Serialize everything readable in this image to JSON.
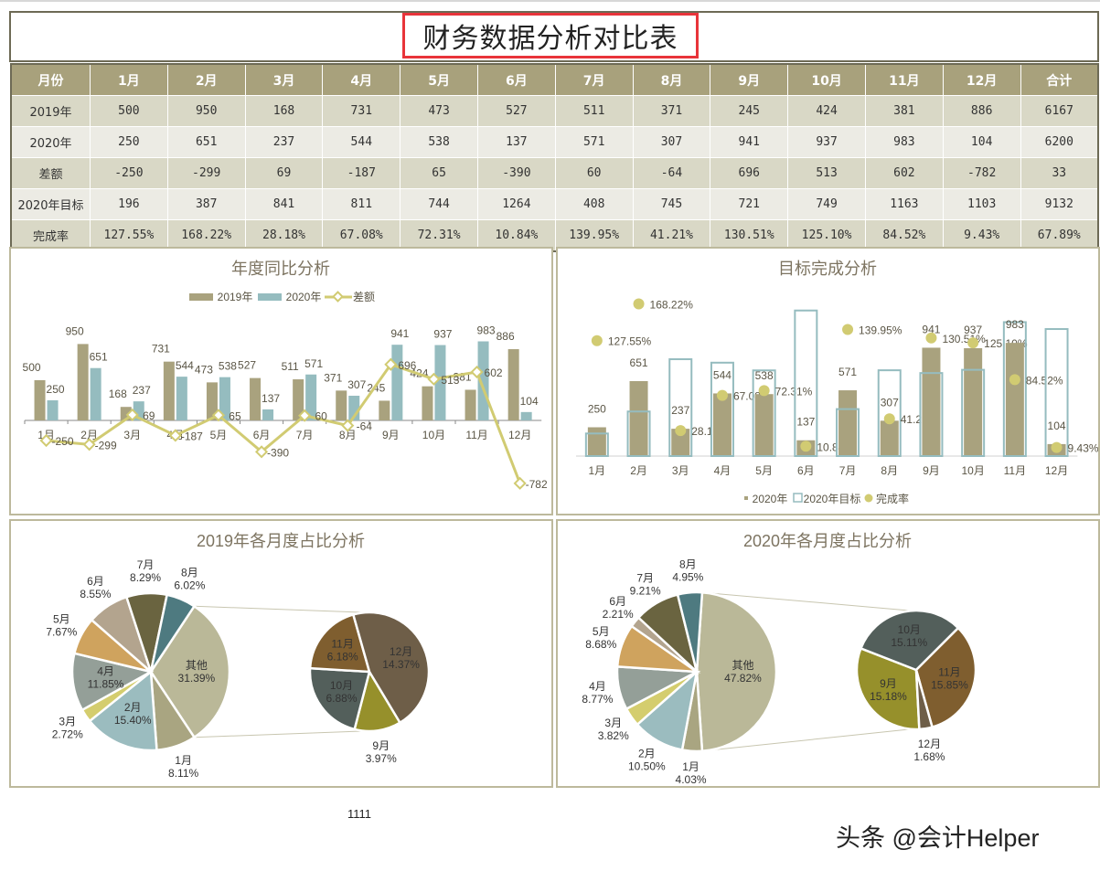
{
  "title": "财务数据分析对比表",
  "table": {
    "headers": [
      "月份",
      "1月",
      "2月",
      "3月",
      "4月",
      "5月",
      "6月",
      "7月",
      "8月",
      "9月",
      "10月",
      "11月",
      "12月",
      "合计"
    ],
    "rows": [
      [
        "2019年",
        "500",
        "950",
        "168",
        "731",
        "473",
        "527",
        "511",
        "371",
        "245",
        "424",
        "381",
        "886",
        "6167"
      ],
      [
        "2020年",
        "250",
        "651",
        "237",
        "544",
        "538",
        "137",
        "571",
        "307",
        "941",
        "937",
        "983",
        "104",
        "6200"
      ],
      [
        "差额",
        "-250",
        "-299",
        "69",
        "-187",
        "65",
        "-390",
        "60",
        "-64",
        "696",
        "513",
        "602",
        "-782",
        "33"
      ],
      [
        "2020年目标",
        "196",
        "387",
        "841",
        "811",
        "744",
        "1264",
        "408",
        "745",
        "721",
        "749",
        "1163",
        "1103",
        "9132"
      ],
      [
        "完成率",
        "127.55%",
        "168.22%",
        "28.18%",
        "67.08%",
        "72.31%",
        "10.84%",
        "139.95%",
        "41.21%",
        "130.51%",
        "125.10%",
        "84.52%",
        "9.43%",
        "67.89%"
      ]
    ]
  },
  "chart_data": [
    {
      "type": "bar",
      "title": "年度同比分析",
      "categories": [
        "1月",
        "2月",
        "3月",
        "4月",
        "5月",
        "6月",
        "7月",
        "8月",
        "9月",
        "10月",
        "11月",
        "12月"
      ],
      "series": [
        {
          "name": "2019年",
          "kind": "bar",
          "color": "#a9a27e",
          "values": [
            500,
            950,
            168,
            731,
            473,
            527,
            511,
            371,
            245,
            424,
            381,
            886
          ]
        },
        {
          "name": "2020年",
          "kind": "bar",
          "color": "#95bcbf",
          "values": [
            250,
            651,
            237,
            544,
            538,
            137,
            571,
            307,
            941,
            937,
            983,
            104
          ]
        },
        {
          "name": "差额",
          "kind": "line",
          "color": "#d1cb72",
          "values": [
            -250,
            -299,
            69,
            -187,
            65,
            -390,
            60,
            -64,
            696,
            513,
            602,
            -782
          ]
        }
      ],
      "legend": "top",
      "grid": false
    },
    {
      "type": "bar",
      "title": "目标完成分析",
      "categories": [
        "1月",
        "2月",
        "3月",
        "4月",
        "5月",
        "6月",
        "7月",
        "8月",
        "9月",
        "10月",
        "11月",
        "12月"
      ],
      "series": [
        {
          "name": "2020年",
          "kind": "bar",
          "color": "#a9a27e",
          "values": [
            250,
            651,
            237,
            544,
            538,
            137,
            571,
            307,
            941,
            937,
            983,
            104
          ]
        },
        {
          "name": "2020年目标",
          "kind": "bar-outline",
          "color": "#95bcbf",
          "values": [
            196,
            387,
            841,
            811,
            744,
            1264,
            408,
            745,
            721,
            749,
            1163,
            1103
          ]
        },
        {
          "name": "完成率",
          "kind": "scatter",
          "color": "#d1cb72",
          "values": [
            127.55,
            168.22,
            28.18,
            67.08,
            72.31,
            10.84,
            139.95,
            41.21,
            130.51,
            125.1,
            84.52,
            9.43
          ],
          "labels": [
            "127.55%",
            "168.22%",
            "28.18%",
            "67.08%",
            "72.31%",
            "10.84%",
            "139.95%",
            "41.21%",
            "130.51%",
            "125.10%",
            "84.52%",
            "9.43%"
          ]
        }
      ],
      "legend": "bottom",
      "grid": false
    },
    {
      "type": "pie",
      "title": "2019年各月度占比分析",
      "primary": [
        {
          "label": "其他",
          "value": 31.39,
          "pct": "31.39%",
          "color": "#bab898"
        },
        {
          "label": "1月",
          "value": 8.11,
          "pct": "8.11%",
          "color": "#a9a581"
        },
        {
          "label": "2月",
          "value": 15.4,
          "pct": "15.40%",
          "color": "#9bbcbf"
        },
        {
          "label": "3月",
          "value": 2.72,
          "pct": "2.72%",
          "color": "#d4cd6e"
        },
        {
          "label": "4月",
          "value": 11.85,
          "pct": "11.85%",
          "color": "#949f98"
        },
        {
          "label": "5月",
          "value": 7.67,
          "pct": "7.67%",
          "color": "#cfa35e"
        },
        {
          "label": "6月",
          "value": 8.55,
          "pct": "8.55%",
          "color": "#b3a48e"
        },
        {
          "label": "7月",
          "value": 8.29,
          "pct": "8.29%",
          "color": "#6a6440"
        },
        {
          "label": "8月",
          "value": 6.02,
          "pct": "6.02%",
          "color": "#4e7a80"
        }
      ],
      "secondary": [
        {
          "label": "9月",
          "value": 3.97,
          "pct": "3.97%",
          "color": "#96902b"
        },
        {
          "label": "10月",
          "value": 6.88,
          "pct": "6.88%",
          "color": "#535f5b"
        },
        {
          "label": "11月",
          "value": 6.18,
          "pct": "6.18%",
          "color": "#7f5e2f"
        },
        {
          "label": "12月",
          "value": 14.37,
          "pct": "14.37%",
          "color": "#6e5e48"
        }
      ]
    },
    {
      "type": "pie",
      "title": "2020年各月度占比分析",
      "primary": [
        {
          "label": "其他",
          "value": 47.82,
          "pct": "47.82%",
          "color": "#bab898"
        },
        {
          "label": "1月",
          "value": 4.03,
          "pct": "4.03%",
          "color": "#a9a581"
        },
        {
          "label": "2月",
          "value": 10.5,
          "pct": "10.50%",
          "color": "#9bbcbf"
        },
        {
          "label": "3月",
          "value": 3.82,
          "pct": "3.82%",
          "color": "#d4cd6e"
        },
        {
          "label": "4月",
          "value": 8.77,
          "pct": "8.77%",
          "color": "#949f98"
        },
        {
          "label": "5月",
          "value": 8.68,
          "pct": "8.68%",
          "color": "#cfa35e"
        },
        {
          "label": "6月",
          "value": 2.21,
          "pct": "2.21%",
          "color": "#b3a48e"
        },
        {
          "label": "7月",
          "value": 9.21,
          "pct": "9.21%",
          "color": "#6a6440"
        },
        {
          "label": "8月",
          "value": 4.95,
          "pct": "4.95%",
          "color": "#4e7a80"
        }
      ],
      "secondary": [
        {
          "label": "9月",
          "value": 15.18,
          "pct": "15.18%",
          "color": "#96902b"
        },
        {
          "label": "10月",
          "value": 15.11,
          "pct": "15.11%",
          "color": "#535f5b"
        },
        {
          "label": "11月",
          "value": 15.85,
          "pct": "15.85%",
          "color": "#7f5e2f"
        },
        {
          "label": "12月",
          "value": 1.68,
          "pct": "1.68%",
          "color": "#6e5e48"
        }
      ]
    }
  ],
  "footer_note": "1111",
  "watermark": "头条 @会计Helper"
}
